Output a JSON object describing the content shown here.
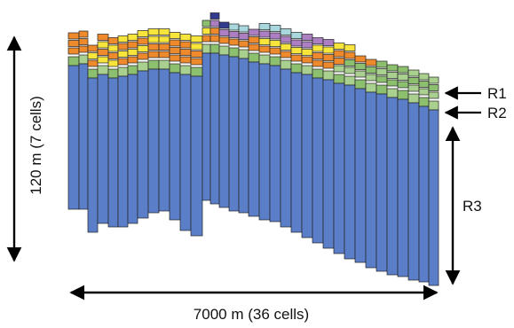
{
  "diagram": {
    "labels": {
      "height": "120 m (7 cells)",
      "width": "7000 m (36 cells)",
      "r1": "R1",
      "r2": "R2",
      "r3": "R3"
    },
    "colors": {
      "r3_blue": "#5b7ec8",
      "r2_green": "#8cc06f",
      "r2_green_light": "#a9d08e",
      "orange": "#ee8a2c",
      "yellow": "#f7e53b",
      "purple": "#ab7fc2",
      "light_blue": "#a8d8de",
      "dark_navy": "#333b8f",
      "outline": "#222222",
      "arrow": "#000000"
    }
  }
}
